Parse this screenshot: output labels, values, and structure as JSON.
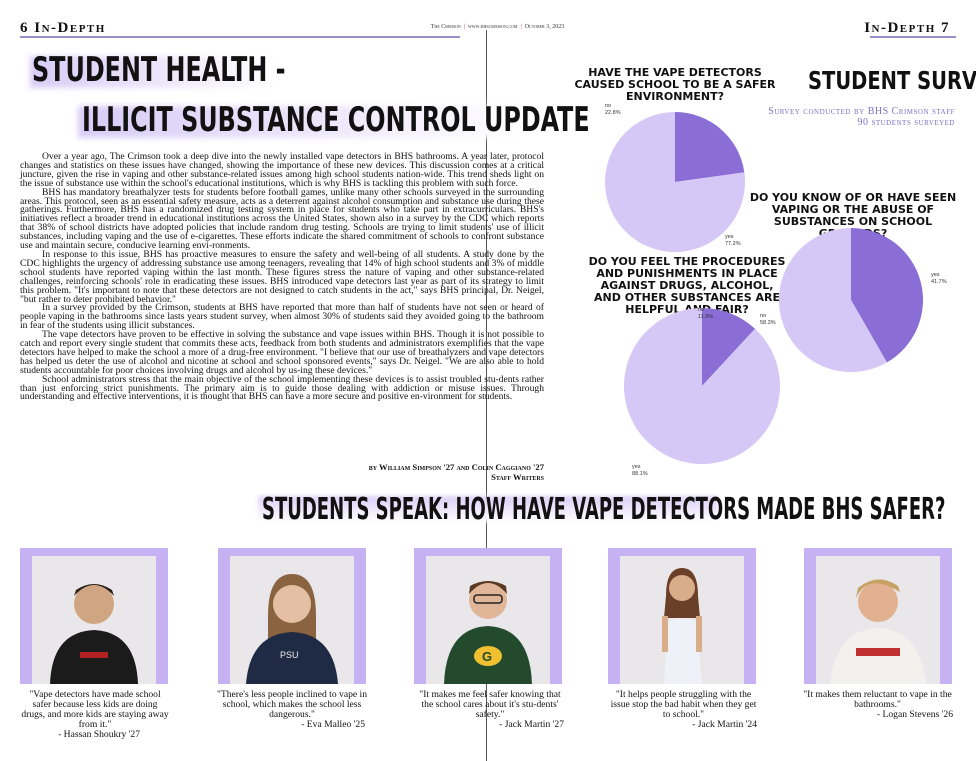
{
  "folio": {
    "left": "6 In-Depth",
    "right": "In-Depth 7",
    "paper": "The Crimson",
    "site": "www.bhscrimson.com",
    "date": "October 3, 2023"
  },
  "headline": {
    "line1": "STUDENT HEALTH -",
    "line2": "ILLICIT SUBSTANCE CONTROL UPDATE"
  },
  "article": {
    "paragraphs": [
      "Over a year ago, The Crimson took a deep dive into the newly installed vape detectors in BHS bathrooms. A year later, protocol changes and statistics on these issues have changed, showing the importance of these new devices. This discussion comes at a critical juncture, given the rise in vaping and other substance-related issues among high school students nation-wide. This trend sheds light on the issue of substance use within the school's educational institutions, which is why BHS is tackling this problem with such force.",
      "BHS has mandatory breathalyzer tests for students before football games, unlike many other schools surveyed in the surrounding areas. This protocol, seen as an essential safety measure, acts as a deterrent against alcohol consumption and substance use during these gatherings. Furthermore, BHS has a randomized drug testing system in place for students who take part in extracurriculars. BHS's initiatives reflect a broader trend in educational institutions across the United States, shown also in a survey by the CDC which reports that 38% of school districts have adopted policies that include random drug testing. Schools are trying to limit students' use of illicit substances, including vaping and the use of e-cigarettes. These efforts indicate the shared commitment of schools to confront substance use and maintain secure, conducive learning envi-ronments.",
      "In response to this issue, BHS has proactive measures to ensure the safety and well-being of all students. A study done by the CDC highlights the urgency of addressing substance use among teenagers, revealing that 14% of high school students and 3% of middle school students have reported vaping within the last month. These figures stress the nature of vaping and other substance-related challenges, reinforcing schools' role in eradicating these issues. BHS introduced vape detectors last year as part of its strategy to limit this problem. \"It's important to note that these detectors are not designed to catch students in the act,\" says BHS principal, Dr. Neigel, \"but rather to deter prohibited behavior.\"",
      "In a survey provided by the Crimson, students at BHS have reported that more than half of students have not seen or heard of people vaping in the bathrooms since lasts years student survey, when almost 30% of students said they avoided going to the bathroom in fear of the students using illicit substances.",
      "The vape detectors have proven to be effective in solving the substance and vape issues within BHS. Though it is not possible to catch and report every single student that commits these acts, feedback from both students and administrators exemplifies that the vape detectors have helped to make the school a more of a drug-free environment. \"I believe that our use of breathalyzers and vape detectors has helped us deter the use of alcohol and nicotine at school and school sponsored events,\" says Dr. Neigel. \"We are also able to hold students accountable for poor choices involving drugs and alcohol by us-ing these devices.\"",
      "School administrators stress that the main objective of the school implementing these devices is to assist troubled stu-dents rather than just enforcing strict punishments. The primary aim is to guide those dealing with addiction or misuse issues. Through understanding and effective interventions, it is thought that BHS can have a more secure and positive en-vironment for students."
    ],
    "byline": "by William Simpson '27 and Colin Caggiano '27",
    "role": "Staff Writers"
  },
  "survey": {
    "title": "STUDENT SURVEY",
    "subtitle_line1": "Survey conducted by BHS Crimson staff",
    "subtitle_line2": "90 students surveyed",
    "colors": {
      "dark": "#8a6ed6",
      "light": "#d6c8f6"
    }
  },
  "chart_data": [
    {
      "type": "pie",
      "title": "HAVE THE VAPE DETECTORS CAUSED SCHOOL TO BE A SAFER ENVIRONMENT?",
      "labels": [
        "no",
        "yes"
      ],
      "values": [
        22.8,
        77.2
      ],
      "value_labels": [
        "22.8%",
        "77.2%"
      ]
    },
    {
      "type": "pie",
      "title": "DO YOU KNOW OF OR HAVE SEEN VAPING OR THE ABUSE OF SUBSTANCES ON SCHOOL GROUNDS?",
      "labels": [
        "yes",
        "no"
      ],
      "values": [
        41.7,
        58.3
      ],
      "value_labels": [
        "41.7%",
        "58.3%"
      ]
    },
    {
      "type": "pie",
      "title": "DO YOU FEEL THE PROCEDURES AND PUNISHMENTS IN PLACE AGAINST DRUGS, ALCOHOL, AND OTHER SUBSTANCES ARE HELPFUL AND FAIR?",
      "labels": [
        "no",
        "yes"
      ],
      "values": [
        11.9,
        88.1
      ],
      "value_labels": [
        "11.9%",
        "88.1%"
      ]
    }
  ],
  "speak": {
    "title": "STUDENTS SPEAK: HOW HAVE VAPE DETECTORS MADE BHS SAFER?"
  },
  "quotes": [
    {
      "text": "\"Vape detectors have made school safer because less kids are doing drugs, and more kids are staying away from it.\"",
      "attr": "- Hassan Shoukry '27"
    },
    {
      "text": "\"There's less people inclined to vape in school, which makes the school less dangerous.\"",
      "attr": "- Eva Malleo '25"
    },
    {
      "text": "\"It makes me feel safer knowing that the school cares about it's stu-dents' safety.\"",
      "attr": "- Jack Martin '27"
    },
    {
      "text": "\"It helps people struggling with the issue stop the bad habit when they get to school.\"",
      "attr": "- Jack Martin '24"
    },
    {
      "text": "\"It makes them reluctant to vape in the bathrooms.\"",
      "attr": "- Logan Stevens '26"
    }
  ]
}
